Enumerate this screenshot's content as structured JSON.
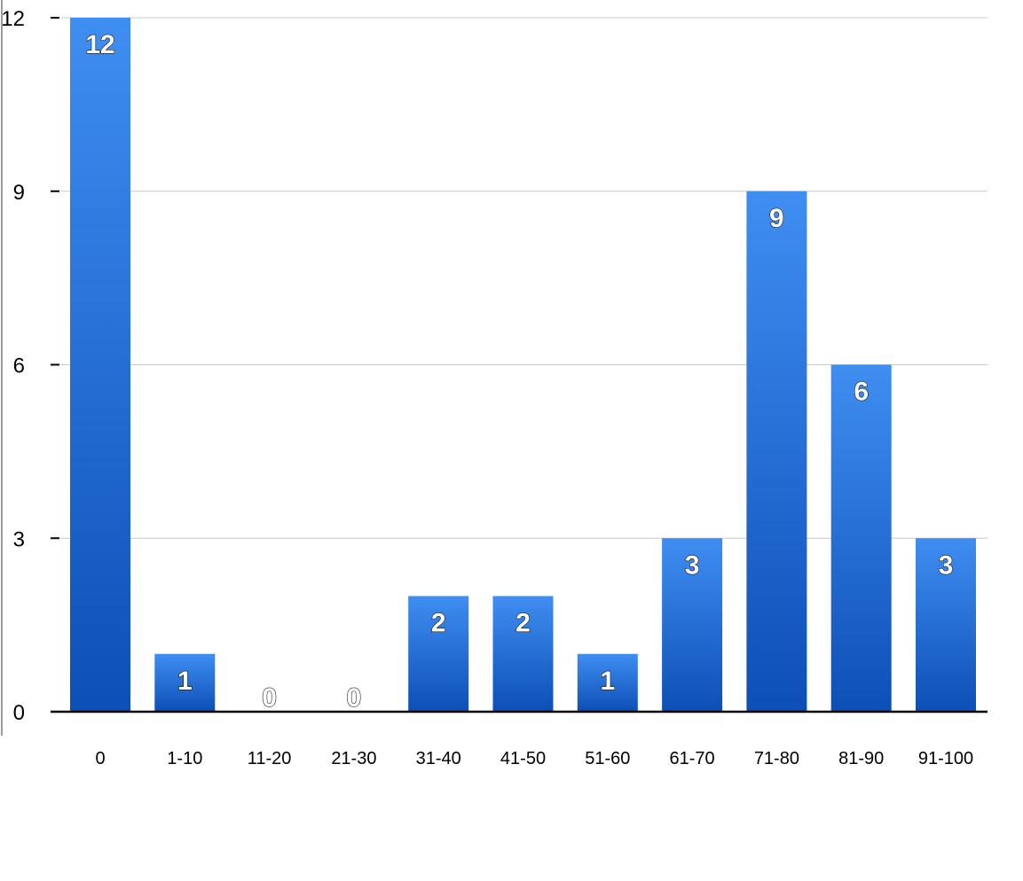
{
  "chart_data": {
    "type": "bar",
    "categories": [
      "0",
      "1-10",
      "11-20",
      "21-30",
      "31-40",
      "41-50",
      "51-60",
      "61-70",
      "71-80",
      "81-90",
      "91-100"
    ],
    "values": [
      12,
      1,
      0,
      0,
      2,
      2,
      1,
      3,
      9,
      6,
      3
    ],
    "title": "",
    "xlabel": "",
    "ylabel": "",
    "ylim": [
      0,
      12
    ],
    "yticks": [
      "0",
      "3",
      "6",
      "9",
      "12"
    ],
    "grid": true,
    "legend": "none",
    "data_labels": true,
    "colors": {
      "bar_top": "#3f8ef2",
      "bar_bottom": "#0d4fb6",
      "grid": "#c8c8c8",
      "axis": "#000000",
      "label_text": "#ffffff"
    }
  }
}
